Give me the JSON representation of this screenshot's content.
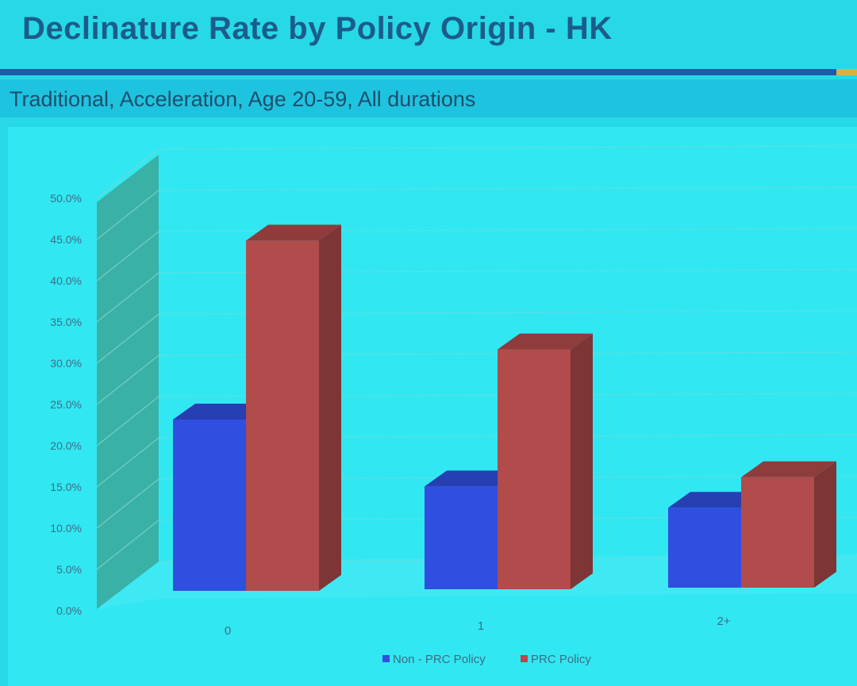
{
  "header": {
    "title": "Declinature Rate by Policy Origin - HK",
    "subtitle": "Traditional, Acceleration, Age 20-59, All durations"
  },
  "chart_data": {
    "type": "bar",
    "style": "3d-clustered-column",
    "categories": [
      "0",
      "1",
      "2+"
    ],
    "series": [
      {
        "name": "Non - PRC Policy",
        "color": "#2f4fe0",
        "values": [
          22.5,
          13.5,
          10.5
        ]
      },
      {
        "name": "PRC Policy",
        "color": "#b24b4b",
        "values": [
          46.0,
          31.5,
          14.5
        ]
      }
    ],
    "y_ticks": [
      "0.0%",
      "5.0%",
      "10.0%",
      "15.0%",
      "20.0%",
      "25.0%",
      "30.0%",
      "35.0%",
      "40.0%",
      "45.0%",
      "50.0%"
    ],
    "ylim": [
      0,
      50
    ],
    "grid": true,
    "legend_position": "bottom-center"
  }
}
